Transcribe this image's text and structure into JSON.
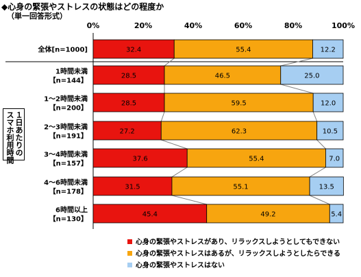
{
  "title": "◆心身の緊張やストレスの状態はどの程度か",
  "subtitle": "（単一回答形式）",
  "y_group_label": {
    "line1": "１日あたりの",
    "line2": "スマホ利用時間"
  },
  "colors": {
    "series1": "#e8140f",
    "series2": "#f7a50f",
    "series3": "#a6cef2",
    "border": "#000000",
    "connector": "#808080"
  },
  "chart_data": {
    "type": "bar",
    "orientation": "horizontal",
    "stacked": true,
    "xlim": [
      0,
      100
    ],
    "x_tick_labels": [
      "0%",
      "20%",
      "40%",
      "60%",
      "80%",
      "100%"
    ],
    "categories": [
      {
        "name": "全体",
        "n": "[n=1000]"
      },
      {
        "name": "1時間未満",
        "n": "【n=144】"
      },
      {
        "name": "1～2時間未満",
        "n": "【n=200】"
      },
      {
        "name": "2～3時間未満",
        "n": "【n=191】"
      },
      {
        "name": "3～4時間未満",
        "n": "【n=157】"
      },
      {
        "name": "4～6時間未満",
        "n": "【n=178】"
      },
      {
        "name": "6時間以上",
        "n": "【n=130】"
      }
    ],
    "series": [
      {
        "name": "心身の緊張やストレスがあり、リラックスしようとしてもできない",
        "values": [
          32.4,
          28.5,
          28.5,
          27.2,
          37.6,
          31.5,
          45.4
        ]
      },
      {
        "name": "心身の緊張やストレスはあるが、リラックスしようとしたらできる",
        "values": [
          55.4,
          46.5,
          59.5,
          62.3,
          55.4,
          55.1,
          49.2
        ]
      },
      {
        "name": "心身の緊張やストレスはない",
        "values": [
          12.2,
          25.0,
          12.0,
          10.5,
          7.0,
          13.5,
          5.4
        ]
      }
    ]
  }
}
